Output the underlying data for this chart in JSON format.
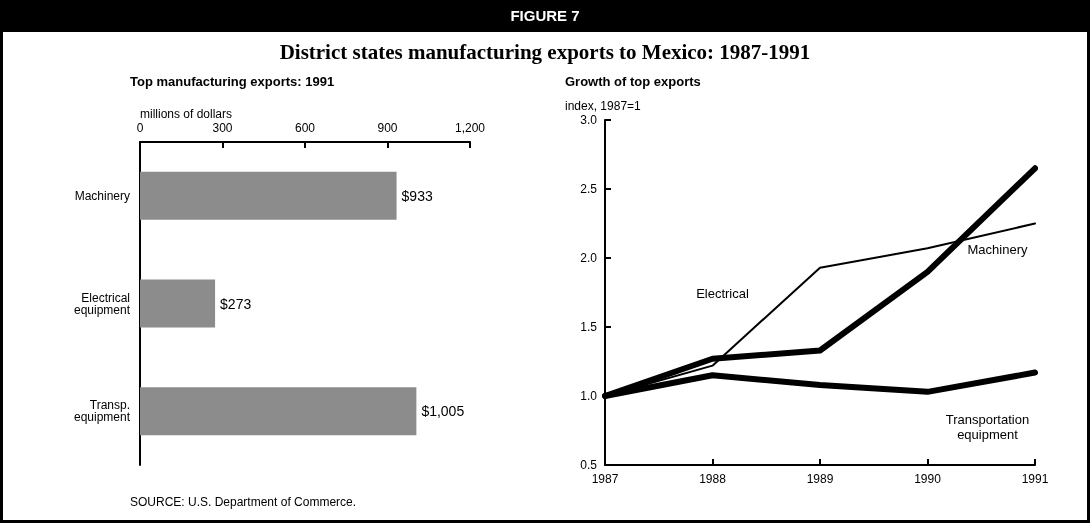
{
  "chart_data": [
    {
      "type": "bar",
      "orientation": "horizontal",
      "title": "Top manufacturing exports: 1991",
      "xlabel": "millions of dollars",
      "categories": [
        "Machinery",
        "Electrical\nequipment",
        "Transp.\nequipment"
      ],
      "values": [
        933,
        273,
        1005
      ],
      "value_labels": [
        "$933",
        "$273",
        "$1,005"
      ],
      "color": "#8c8c8c",
      "xlim": [
        0,
        1200
      ],
      "xticks": [
        0,
        300,
        600,
        900,
        {
          "value": 1200,
          "label": "1,200"
        }
      ],
      "grid": false,
      "legend": false,
      "annotations": [
        "FIGURE 7",
        "District states manufacturing exports to Mexico: 1987-1991",
        "SOURCE: U.S. Department of Commerce."
      ]
    },
    {
      "type": "line",
      "title": "Growth of top exports",
      "ylabel": "index, 1987=1",
      "x": [
        1987,
        1988,
        1989,
        1990,
        1991
      ],
      "xlim": [
        1987,
        1991
      ],
      "xticks": [
        1987,
        1988,
        1989,
        1990,
        1991
      ],
      "ylim": [
        0.5,
        3
      ],
      "yticks": [
        {
          "value": 0.5,
          "label": "0.5"
        },
        {
          "value": 1,
          "label": "1.0"
        },
        {
          "value": 1.5,
          "label": "1.5"
        },
        {
          "value": 2,
          "label": "2.0"
        },
        {
          "value": 2.5,
          "label": "2.5"
        },
        {
          "value": 3,
          "label": "3.0"
        }
      ],
      "grid": false,
      "legend": false,
      "marker": "none",
      "line_style": "solid",
      "series": [
        {
          "name": "Electrical",
          "color": "#000000",
          "values": [
            1.0,
            1.22,
            1.93,
            2.07,
            2.25
          ]
        },
        {
          "name": "Machinery",
          "color": "#000000",
          "values": [
            1.0,
            1.27,
            1.33,
            1.9,
            2.65
          ]
        },
        {
          "name": "Transportation\nequipment",
          "color": "#000000",
          "values": [
            1.0,
            1.15,
            1.08,
            1.03,
            1.17
          ]
        }
      ]
    }
  ]
}
